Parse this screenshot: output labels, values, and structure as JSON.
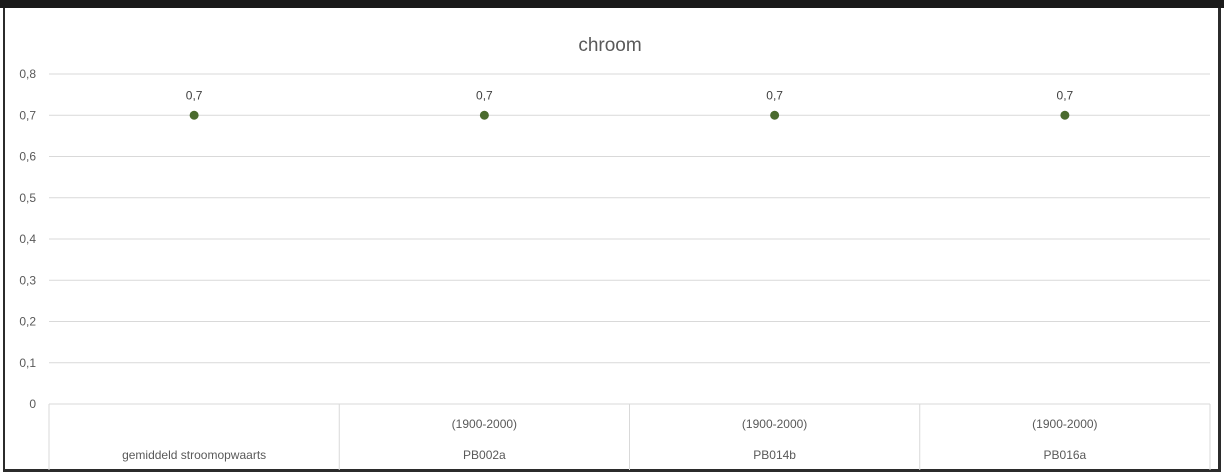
{
  "chart_data": {
    "type": "scatter",
    "title": "chroom",
    "xlabel": "",
    "ylabel": "",
    "ylim": [
      0,
      0.8
    ],
    "yticks": [
      "0",
      "0,1",
      "0,2",
      "0,3",
      "0,4",
      "0,5",
      "0,6",
      "0,7",
      "0,8"
    ],
    "grid": true,
    "legend": "none",
    "categories": [
      {
        "top": "",
        "bottom": "gemiddeld stroomopwaarts"
      },
      {
        "top": "(1900-2000)",
        "bottom": "PB002a"
      },
      {
        "top": "(1900-2000)",
        "bottom": "PB014b"
      },
      {
        "top": "(1900-2000)",
        "bottom": "PB016a"
      }
    ],
    "values": [
      0.7,
      0.7,
      0.7,
      0.7
    ],
    "data_labels": [
      "0,7",
      "0,7",
      "0,7",
      "0,7"
    ],
    "marker_color": "#4a6b2e",
    "grid_color": "#d9d9d9"
  }
}
